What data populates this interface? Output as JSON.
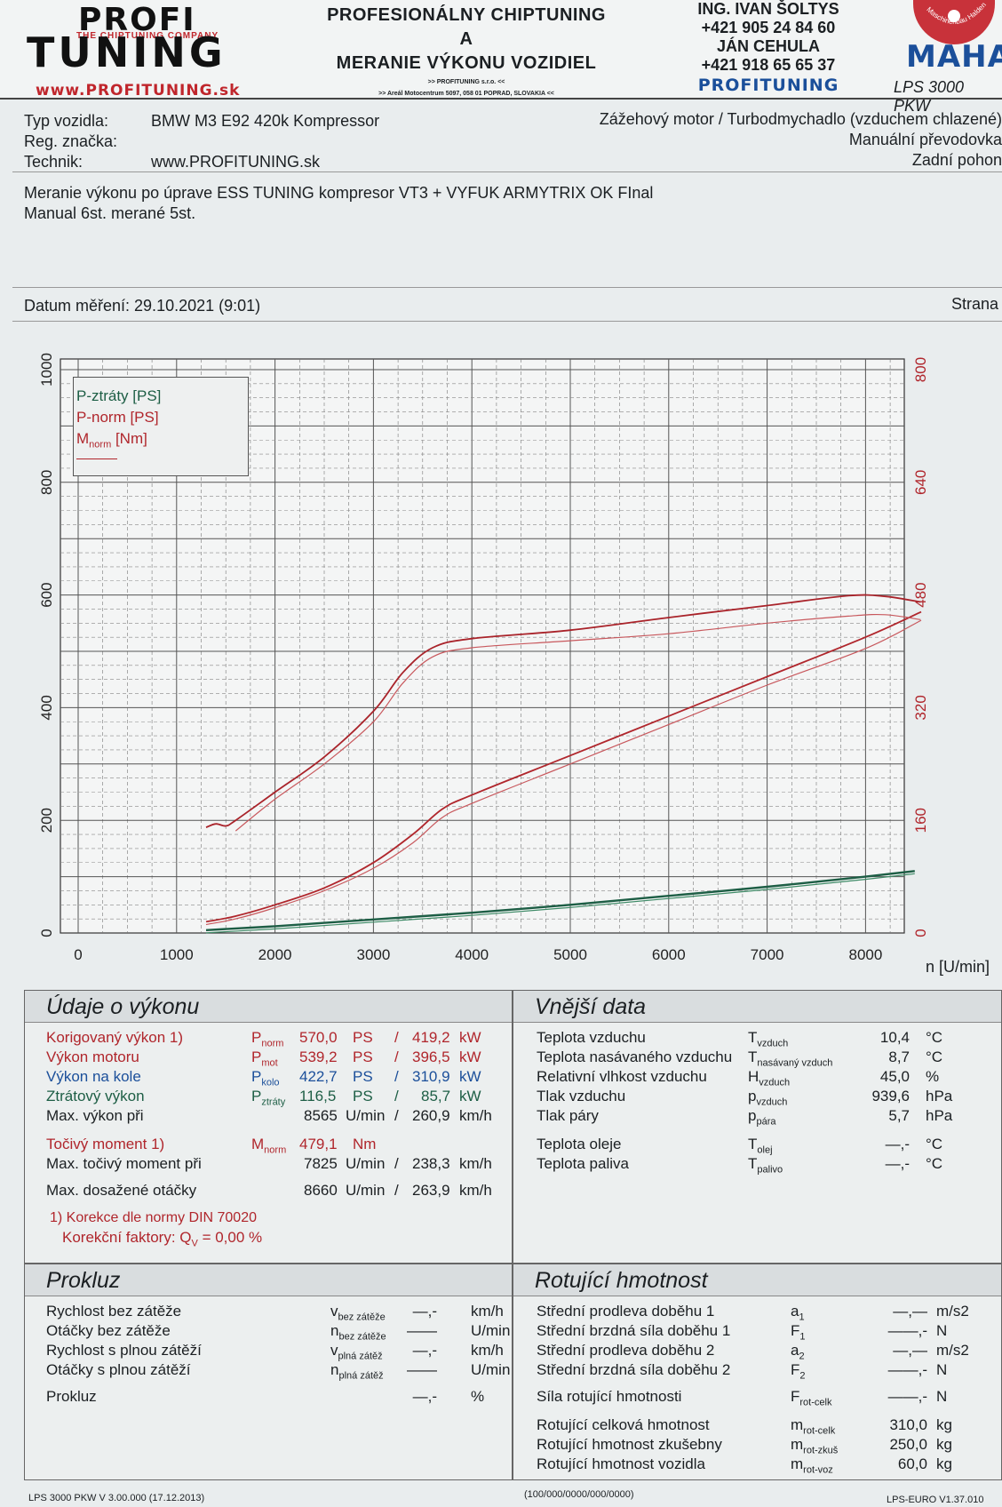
{
  "header": {
    "logo_top": "PROFI",
    "logo_tagline": "THE CHIPTUNING COMPANY",
    "logo_bottom": "TUNING",
    "logo_url": "www.PROFITUNING.sk",
    "title_line1": "PROFESIONÁLNY CHIPTUNING",
    "title_line2": "A",
    "title_line3": "MERANIE VÝKONU VOZIDIEL",
    "sub_line1": ">> PROFITUNING s.r.o. <<",
    "sub_line2": ">> Areál Motocentrum 5097, 058 01 POPRAD, SLOVAKIA <<",
    "contact_name1": "ING. IVAN ŠOLTYS",
    "contact_phone1": "+421 905 24 84 60",
    "contact_name2": "JÁN CEHULA",
    "contact_phone2": "+421 918 65 65 37",
    "contact_brand": "PROFITUNING",
    "maha_ring": "Maschinenbau Haldenwang",
    "maha_logo": "MAHA",
    "model": "LPS 3000 PKW"
  },
  "vehicle": {
    "type_label": "Typ vozidla:",
    "type_value": "BMW M3 E92 420k Kompressor",
    "reg_label": "Reg. značka:",
    "reg_value": "",
    "tech_label": "Technik:",
    "tech_value": "www.PROFITUNING.sk",
    "engine": "Zážehový motor / Turbodmychadlo (vzduchem chlazené)",
    "gearbox": "Manuální převodovka",
    "drive": "Zadní pohon"
  },
  "description": {
    "line1": "Meranie výkonu po úprave ESS TUNING kompresor VT3 + VYFUK ARMYTRIX OK FInal",
    "line2": "Manual 6st. merané 5st."
  },
  "measurement": {
    "date": "Datum měření: 29.10.2021 (9:01)",
    "page": "Strana"
  },
  "chart_data": {
    "type": "line",
    "xlabel": "n [U/min]",
    "x_ticks": [
      0,
      1000,
      2000,
      3000,
      4000,
      5000,
      6000,
      7000,
      8000
    ],
    "xlim": [
      0,
      8600
    ],
    "y_left_ticks": [
      0,
      200,
      400,
      600,
      800,
      1000
    ],
    "y_left_lim": [
      0,
      1000
    ],
    "y_right_ticks": [
      0,
      160,
      320,
      480,
      640,
      800
    ],
    "y_right_lim": [
      0,
      800
    ],
    "grid": true,
    "legend_position": "top-left",
    "legend": [
      "P-ztráty [PS]",
      "P-norm [PS]",
      "Mnorm [Nm]"
    ],
    "colors": {
      "loss": "#1d5e45",
      "power": "#b0262c",
      "power_2": "#c8585d",
      "torque": "#a9232a",
      "torque_2": "#c8585d"
    },
    "series": [
      {
        "name": "P-ztráty [PS]",
        "axis": "left",
        "x": [
          1300,
          2000,
          3000,
          4000,
          5000,
          6000,
          7000,
          8000,
          8500
        ],
        "values": [
          5,
          12,
          24,
          36,
          50,
          66,
          82,
          100,
          110
        ]
      },
      {
        "name": "P-norm [PS]",
        "axis": "left",
        "x": [
          1300,
          1600,
          2000,
          2500,
          3000,
          3400,
          3700,
          4000,
          5000,
          6000,
          7000,
          8000,
          8565
        ],
        "values": [
          20,
          30,
          50,
          80,
          125,
          175,
          220,
          245,
          315,
          385,
          455,
          525,
          570
        ]
      },
      {
        "name": "P-norm run 2",
        "axis": "left",
        "x": [
          1300,
          1600,
          2000,
          2500,
          3000,
          3400,
          3700,
          4000,
          5000,
          6000,
          7000,
          8000,
          8565
        ],
        "values": [
          15,
          25,
          45,
          75,
          115,
          160,
          205,
          230,
          300,
          370,
          440,
          505,
          555
        ]
      },
      {
        "name": "Mnorm [Nm]",
        "axis": "right",
        "x": [
          1300,
          1400,
          1500,
          1600,
          2000,
          2500,
          3000,
          3300,
          3600,
          4000,
          5000,
          6000,
          7000,
          7825,
          8200,
          8560
        ],
        "values": [
          150,
          155,
          152,
          160,
          200,
          250,
          315,
          370,
          405,
          418,
          430,
          448,
          465,
          479,
          478,
          470
        ]
      },
      {
        "name": "Mnorm run 2",
        "axis": "right",
        "x": [
          1600,
          2000,
          2500,
          3000,
          3300,
          3600,
          4000,
          5000,
          6000,
          7000,
          7825,
          8200,
          8560
        ],
        "values": [
          145,
          190,
          240,
          300,
          355,
          392,
          405,
          415,
          425,
          440,
          450,
          452,
          445
        ]
      }
    ]
  },
  "performance": {
    "title": "Údaje o výkonu",
    "corrected_label": "Korigovaný výkon 1)",
    "corrected_sym": "P",
    "corrected_sub": "norm",
    "corrected_ps": "570,0",
    "corrected_kw": "419,2",
    "engine_label": "Výkon motoru",
    "engine_sym": "P",
    "engine_sub": "mot",
    "engine_ps": "539,2",
    "engine_kw": "396,5",
    "wheel_label": "Výkon na kole",
    "wheel_sym": "P",
    "wheel_sub": "kolo",
    "wheel_ps": "422,7",
    "wheel_kw": "310,9",
    "loss_label": "Ztrátový výkon",
    "loss_sym": "P",
    "loss_sub": "ztráty",
    "loss_ps": "116,5",
    "loss_kw": "85,7",
    "maxpower_label": "Max. výkon při",
    "maxpower_rpm": "8565",
    "maxpower_kmh": "260,9",
    "torque_label": "Točivý moment 1)",
    "torque_sym": "M",
    "torque_sub": "norm",
    "torque_value": "479,1",
    "torque_unit": "Nm",
    "maxtorque_label": "Max. točivý moment při",
    "maxtorque_rpm": "7825",
    "maxtorque_kmh": "238,3",
    "maxrpm_label": "Max. dosažené otáčky",
    "maxrpm_rpm": "8660",
    "maxrpm_kmh": "263,9",
    "unit_ps": "PS",
    "unit_kw": "kW",
    "unit_rpm": "U/min",
    "unit_kmh": "km/h",
    "slash": "/",
    "note1": "1) Korekce dle normy DIN 70020",
    "note2_pre": "Korekční faktory: Q",
    "note2_sub": "V",
    "note2_val": "= 0,00 %"
  },
  "external": {
    "title": "Vnější data",
    "rows": [
      {
        "label": "Teplota vzduchu",
        "sym": "T",
        "sub": "vzduch",
        "val": "10,4",
        "unit": "°C"
      },
      {
        "label": "Teplota nasávaného vzduchu",
        "sym": "T",
        "sub": "nasávaný vzduch",
        "val": "8,7",
        "unit": "°C"
      },
      {
        "label": "Relativní vlhkost vzduchu",
        "sym": "H",
        "sub": "vzduch",
        "val": "45,0",
        "unit": "%"
      },
      {
        "label": "Tlak vzduchu",
        "sym": "p",
        "sub": "vzduch",
        "val": "939,6",
        "unit": "hPa"
      },
      {
        "label": "Tlak páry",
        "sym": "p",
        "sub": "pára",
        "val": "5,7",
        "unit": "hPa"
      },
      {
        "label": "Teplota oleje",
        "sym": "T",
        "sub": "olej",
        "val": "—,-",
        "unit": "°C"
      },
      {
        "label": "Teplota paliva",
        "sym": "T",
        "sub": "palivo",
        "val": "—,-",
        "unit": "°C"
      }
    ]
  },
  "slip": {
    "title": "Prokluz",
    "rows": [
      {
        "label": "Rychlost bez zátěže",
        "sym": "v",
        "sub": "bez zátěže",
        "val": "—,-",
        "unit": "km/h"
      },
      {
        "label": "Otáčky bez zátěže",
        "sym": "n",
        "sub": "bez zátěže",
        "val": "——",
        "unit": "U/min"
      },
      {
        "label": "Rychlost s plnou zátěží",
        "sym": "v",
        "sub": "plná zátěž",
        "val": "—,-",
        "unit": "km/h"
      },
      {
        "label": "Otáčky s plnou zátěží",
        "sym": "n",
        "sub": "plná zátěž",
        "val": "——",
        "unit": "U/min"
      },
      {
        "label": "Prokluz",
        "sym": "",
        "sub": "",
        "val": "—,-",
        "unit": "%"
      }
    ]
  },
  "rotating": {
    "title": "Rotující hmotnost",
    "rows": [
      {
        "label": "Střední prodleva doběhu 1",
        "sym": "a",
        "sub": "1",
        "val": "—,—",
        "unit": "m/s2"
      },
      {
        "label": "Střední brzdná síla doběhu 1",
        "sym": "F",
        "sub": "1",
        "val": "——,-",
        "unit": "N"
      },
      {
        "label": "Střední prodleva doběhu 2",
        "sym": "a",
        "sub": "2",
        "val": "—,—",
        "unit": "m/s2"
      },
      {
        "label": "Střední brzdná síla doběhu 2",
        "sym": "F",
        "sub": "2",
        "val": "——,-",
        "unit": "N"
      },
      {
        "label": "Síla rotující hmotnosti",
        "sym": "F",
        "sub": "rot-celk",
        "val": "——,-",
        "unit": "N"
      },
      {
        "label": "Rotující celková hmotnost",
        "sym": "m",
        "sub": "rot-celk",
        "val": "310,0",
        "unit": "kg"
      },
      {
        "label": "Rotující hmotnost zkušebny",
        "sym": "m",
        "sub": "rot-zkuš",
        "val": "250,0",
        "unit": "kg"
      },
      {
        "label": "Rotující hmotnost vozidla",
        "sym": "m",
        "sub": "rot-voz",
        "val": "60,0",
        "unit": "kg"
      }
    ]
  },
  "footer": {
    "left": "LPS 3000 PKW V 3.00.000 (17.12.2013)",
    "center": "(100/000/0000/000/0000)",
    "right": "LPS-EURO V1.37.010"
  }
}
